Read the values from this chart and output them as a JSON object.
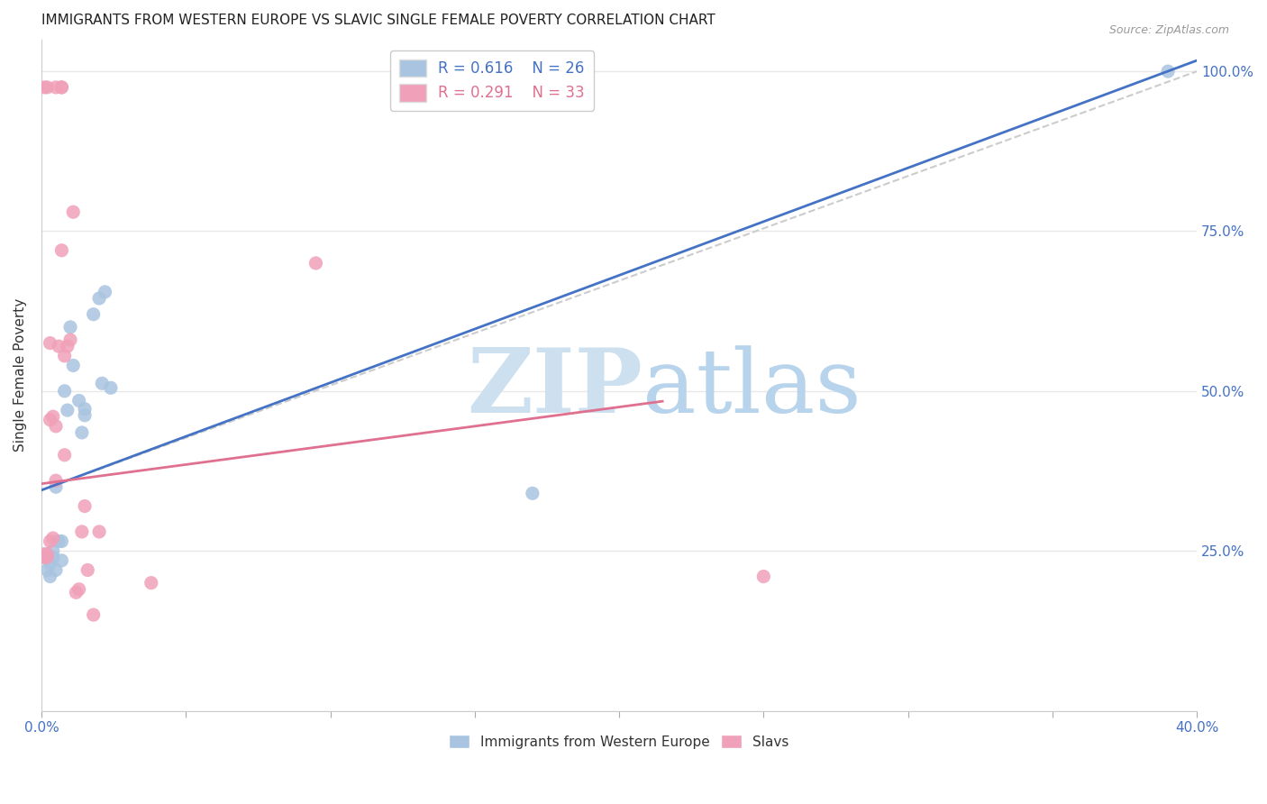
{
  "title": "IMMIGRANTS FROM WESTERN EUROPE VS SLAVIC SINGLE FEMALE POVERTY CORRELATION CHART",
  "source": "Source: ZipAtlas.com",
  "ylabel": "Single Female Poverty",
  "xlim": [
    0.0,
    0.4
  ],
  "ylim": [
    0.0,
    1.05
  ],
  "xticks": [
    0.0,
    0.05,
    0.1,
    0.15,
    0.2,
    0.25,
    0.3,
    0.35,
    0.4
  ],
  "yticks": [
    0.0,
    0.25,
    0.5,
    0.75,
    1.0
  ],
  "blue_R": 0.616,
  "blue_N": 26,
  "pink_R": 0.291,
  "pink_N": 33,
  "blue_color": "#a8c4e0",
  "pink_color": "#f0a0b8",
  "blue_line_color": "#4472c4",
  "pink_line_color": "#e07090",
  "watermark_color": "#cce0f0",
  "blue_line_intercept": 0.345,
  "blue_line_slope": 1.68,
  "pink_line_intercept": 0.355,
  "pink_line_slope": 0.6,
  "pink_line_xmax": 0.215,
  "dash_line_x": [
    0.0,
    0.4
  ],
  "dash_line_y": [
    0.345,
    1.0
  ],
  "blue_scatter_x": [
    0.001,
    0.002,
    0.003,
    0.003,
    0.004,
    0.004,
    0.005,
    0.005,
    0.006,
    0.007,
    0.007,
    0.008,
    0.009,
    0.01,
    0.011,
    0.013,
    0.014,
    0.015,
    0.015,
    0.018,
    0.02,
    0.021,
    0.022,
    0.024,
    0.17,
    0.39
  ],
  "blue_scatter_y": [
    0.24,
    0.22,
    0.23,
    0.21,
    0.25,
    0.24,
    0.22,
    0.35,
    0.265,
    0.235,
    0.265,
    0.5,
    0.47,
    0.6,
    0.54,
    0.485,
    0.435,
    0.462,
    0.472,
    0.62,
    0.645,
    0.512,
    0.655,
    0.505,
    0.34,
    1.0
  ],
  "pink_scatter_x": [
    0.001,
    0.001,
    0.001,
    0.002,
    0.002,
    0.002,
    0.003,
    0.003,
    0.003,
    0.004,
    0.004,
    0.005,
    0.005,
    0.005,
    0.006,
    0.007,
    0.007,
    0.007,
    0.008,
    0.008,
    0.009,
    0.01,
    0.011,
    0.012,
    0.013,
    0.014,
    0.015,
    0.016,
    0.018,
    0.02,
    0.038,
    0.095,
    0.25
  ],
  "pink_scatter_y": [
    0.245,
    0.24,
    0.975,
    0.245,
    0.24,
    0.975,
    0.265,
    0.575,
    0.455,
    0.46,
    0.27,
    0.36,
    0.445,
    0.975,
    0.57,
    0.975,
    0.975,
    0.72,
    0.555,
    0.4,
    0.57,
    0.58,
    0.78,
    0.185,
    0.19,
    0.28,
    0.32,
    0.22,
    0.15,
    0.28,
    0.2,
    0.7,
    0.21
  ],
  "blue_scatter_size": 120,
  "pink_scatter_size": 120,
  "grid_color": "#e8e8e8",
  "right_axis_color": "#4472c4",
  "title_fontsize": 11,
  "source_fontsize": 9
}
